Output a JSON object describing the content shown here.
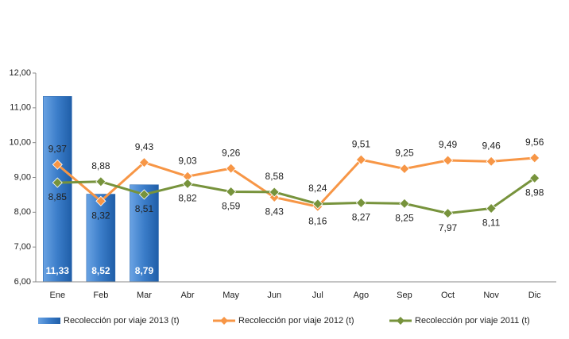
{
  "chart_data": {
    "type": "bar_line",
    "categories": [
      "Ene",
      "Feb",
      "Mar",
      "Abr",
      "May",
      "Jun",
      "Jul",
      "Ago",
      "Sep",
      "Oct",
      "Nov",
      "Dic"
    ],
    "series": [
      {
        "name": "Recolección por viaje 2013 (t)",
        "type": "bar",
        "color": "#3b7dc9",
        "values": [
          11.33,
          8.52,
          8.79,
          null,
          null,
          null,
          null,
          null,
          null,
          null,
          null,
          null
        ],
        "value_labels": [
          "11,33",
          "8,52",
          "8,79",
          null,
          null,
          null,
          null,
          null,
          null,
          null,
          null,
          null
        ]
      },
      {
        "name": "Recolección por viaje 2012 (t)",
        "type": "line",
        "color": "#f79646",
        "values": [
          9.37,
          8.32,
          9.43,
          9.03,
          9.26,
          8.43,
          8.16,
          9.51,
          9.25,
          9.49,
          9.46,
          9.56
        ],
        "value_labels": [
          "9,37",
          "8,32",
          "9,43",
          "9,03",
          "9,26",
          "8,43",
          "8,16",
          "9,51",
          "9,25",
          "9,49",
          "9,46",
          "9,56"
        ]
      },
      {
        "name": "Recolección por viaje 2011 (t)",
        "type": "line",
        "color": "#77933c",
        "values": [
          8.85,
          8.88,
          8.51,
          8.82,
          8.59,
          8.58,
          8.24,
          8.27,
          8.25,
          7.97,
          8.11,
          8.98
        ],
        "value_labels": [
          "8,85",
          "8,88",
          "8,51",
          "8,82",
          "8,59",
          "8,58",
          "8,24",
          "8,27",
          "8,25",
          "7,97",
          "8,11",
          "8,98"
        ]
      }
    ],
    "ylim": [
      6,
      12
    ],
    "yticks": [
      {
        "value": 6,
        "label": "6,00"
      },
      {
        "value": 7,
        "label": "7,00"
      },
      {
        "value": 8,
        "label": "8,00"
      },
      {
        "value": 9,
        "label": "9,00"
      },
      {
        "value": 10,
        "label": "10,00"
      },
      {
        "value": 11,
        "label": "11,00"
      },
      {
        "value": 12,
        "label": "12,00"
      }
    ],
    "grid": false,
    "legend": "bottom"
  }
}
